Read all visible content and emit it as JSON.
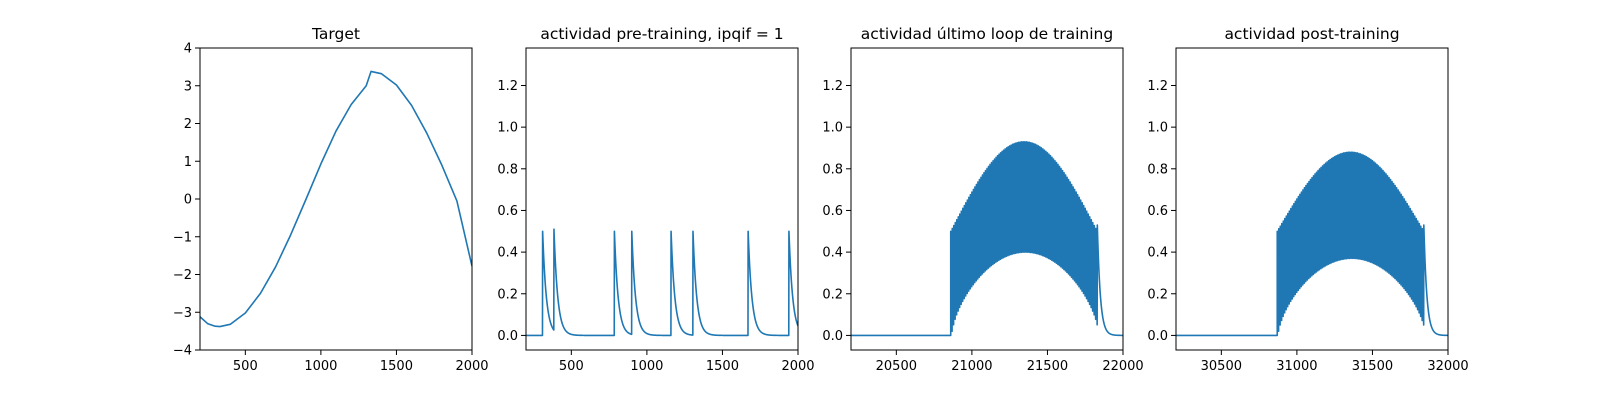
{
  "chart_data": [
    {
      "type": "line",
      "title": "Target",
      "xlim": [
        200,
        2000
      ],
      "ylim": [
        -4,
        4
      ],
      "xticks": [
        500,
        1000,
        1500,
        2000
      ],
      "yticks": [
        -4,
        -3,
        -2,
        -1,
        0,
        1,
        2,
        3,
        4
      ],
      "xtick_labels": [
        "500",
        "1000",
        "1500",
        "2000"
      ],
      "ytick_labels": [
        "−4",
        "−3",
        "−2",
        "−1",
        "0",
        "1",
        "2",
        "3",
        "4"
      ],
      "series": [
        {
          "color": "#1f77b4",
          "x": [
            200,
            250,
            300,
            332,
            400,
            500,
            600,
            700,
            800,
            900,
            1000,
            1100,
            1200,
            1300,
            1332,
            1400,
            1500,
            1600,
            1700,
            1800,
            1900,
            2000
          ],
          "y": [
            -3.12,
            -3.3,
            -3.37,
            -3.38,
            -3.32,
            -3.02,
            -2.5,
            -1.8,
            -0.95,
            -0.02,
            0.93,
            1.8,
            2.5,
            3.0,
            3.38,
            3.32,
            3.02,
            2.48,
            1.75,
            0.9,
            -0.05,
            -1.78
          ]
        }
      ]
    },
    {
      "type": "line",
      "title": "actividad pre-training, ipqif = 1",
      "xlim": [
        200,
        2000
      ],
      "ylim": [
        -0.07,
        1.38
      ],
      "xticks": [
        500,
        1000,
        1500,
        2000
      ],
      "yticks": [
        0.0,
        0.2,
        0.4,
        0.6,
        0.8,
        1.0,
        1.2
      ],
      "xtick_labels": [
        "500",
        "1000",
        "1500",
        "2000"
      ],
      "ytick_labels": [
        "0.0",
        "0.2",
        "0.4",
        "0.6",
        "0.8",
        "1.0",
        "1.2"
      ],
      "series": [
        {
          "color": "#1f77b4",
          "spikes": [
            {
              "x": 310,
              "peak": 0.5
            },
            {
              "x": 385,
              "peak": 0.51
            },
            {
              "x": 785,
              "peak": 0.5
            },
            {
              "x": 900,
              "peak": 0.5
            },
            {
              "x": 1160,
              "peak": 0.5
            },
            {
              "x": 1305,
              "peak": 0.5
            },
            {
              "x": 1670,
              "peak": 0.5
            },
            {
              "x": 1940,
              "peak": 0.5
            }
          ],
          "decay": 25
        }
      ]
    },
    {
      "type": "line",
      "title": "actividad último loop de training",
      "xlim": [
        20200,
        22000
      ],
      "ylim": [
        -0.07,
        1.38
      ],
      "xticks": [
        20500,
        21000,
        21500,
        22000
      ],
      "yticks": [
        0.0,
        0.2,
        0.4,
        0.6,
        0.8,
        1.0,
        1.2
      ],
      "xtick_labels": [
        "20500",
        "21000",
        "21500",
        "22000"
      ],
      "ytick_labels": [
        "0.0",
        "0.2",
        "0.4",
        "0.6",
        "0.8",
        "1.0",
        "1.2"
      ],
      "series": [
        {
          "color": "#1f77b4",
          "burst": {
            "start": 20860,
            "end": 21830,
            "first_peak": 0.5,
            "max_peak": 0.93,
            "max_trough": 0.4,
            "period": 10,
            "final_decay": 20
          },
          "baseline": 0.0
        }
      ]
    },
    {
      "type": "line",
      "title": "actividad post-training",
      "xlim": [
        30200,
        32000
      ],
      "ylim": [
        -0.07,
        1.38
      ],
      "xticks": [
        30500,
        31000,
        31500,
        32000
      ],
      "yticks": [
        0.0,
        0.2,
        0.4,
        0.6,
        0.8,
        1.0,
        1.2
      ],
      "xtick_labels": [
        "30500",
        "31000",
        "31500",
        "32000"
      ],
      "ytick_labels": [
        "0.0",
        "0.2",
        "0.4",
        "0.6",
        "0.8",
        "1.0",
        "1.2"
      ],
      "series": [
        {
          "color": "#1f77b4",
          "burst": {
            "start": 30870,
            "end": 31840,
            "first_peak": 0.5,
            "max_peak": 0.88,
            "max_trough": 0.37,
            "period": 10,
            "final_decay": 20
          },
          "baseline": 0.0
        }
      ]
    }
  ]
}
